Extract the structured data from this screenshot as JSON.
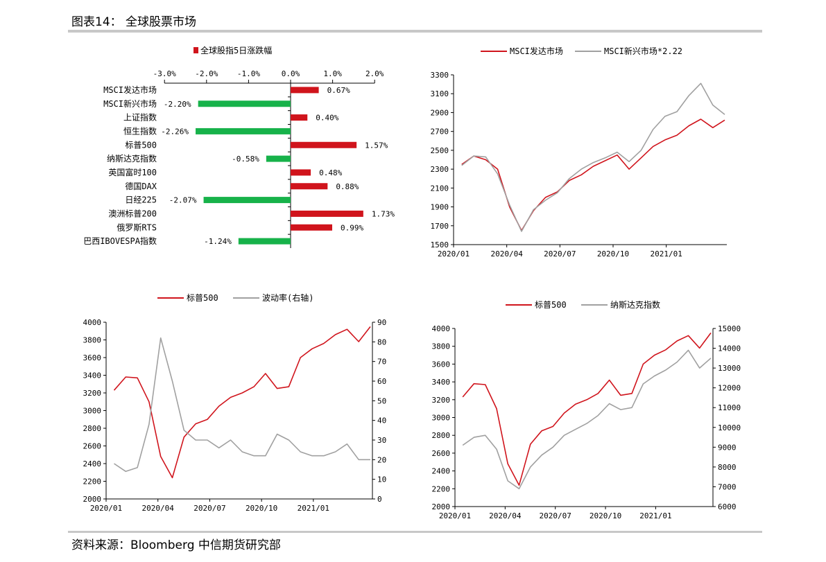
{
  "header": {
    "title": "图表14：  全球股票市场"
  },
  "footer": {
    "source": "资料来源：Bloomberg 中信期货研究部"
  },
  "colors": {
    "red": "#d0141c",
    "green": "#17b24a",
    "gray": "#a0a0a0",
    "rule": "#c8c8c8"
  },
  "chart_data": [
    {
      "id": "bar5d",
      "type": "bar",
      "orientation": "horizontal",
      "legend": "全球股指5日涨跌幅",
      "axis_ticks": [
        "-3.0%",
        "-2.0%",
        "-1.0%",
        "0.0%",
        "1.0%",
        "2.0%"
      ],
      "xlim": [
        -3.0,
        2.0
      ],
      "categories": [
        "MSCI发达市场",
        "MSCI新兴市场",
        "上证指数",
        "恒生指数",
        "标普500",
        "纳斯达克指数",
        "英国富时100",
        "德国DAX",
        "日经225",
        "澳洲标普200",
        "俄罗斯RTS",
        "巴西IBOVESPA指数"
      ],
      "values": [
        0.67,
        -2.2,
        0.4,
        -2.26,
        1.57,
        -0.58,
        0.48,
        0.88,
        -2.07,
        1.73,
        0.99,
        -1.24
      ],
      "value_labels": [
        "0.67%",
        "-2.20%",
        "0.40%",
        "-2.26%",
        "1.57%",
        "-0.58%",
        "0.48%",
        "0.88%",
        "-2.07%",
        "1.73%",
        "0.99%",
        "-1.24%"
      ]
    },
    {
      "id": "msci",
      "type": "line",
      "series": [
        {
          "name": "MSCI发达市场",
          "color": "red",
          "values": [
            2350,
            2440,
            2400,
            2300,
            1900,
            1650,
            1860,
            2000,
            2060,
            2180,
            2240,
            2330,
            2390,
            2450,
            2300,
            2420,
            2540,
            2610,
            2660,
            2760,
            2830,
            2740,
            2820
          ]
        },
        {
          "name": "MSCI新兴市场*2.22",
          "color": "gray",
          "values": [
            2340,
            2440,
            2430,
            2250,
            1920,
            1640,
            1870,
            1970,
            2050,
            2200,
            2300,
            2370,
            2420,
            2480,
            2380,
            2500,
            2720,
            2860,
            2910,
            3080,
            3210,
            2980,
            2880
          ]
        }
      ],
      "x_tick_labels": [
        "2020/01",
        "2020/04",
        "2020/07",
        "2020/10",
        "2021/01"
      ],
      "y_tick_labels": [
        "1500",
        "1700",
        "1900",
        "2100",
        "2300",
        "2500",
        "2700",
        "2900",
        "3100",
        "3300"
      ],
      "ylim": [
        1500,
        3300
      ]
    },
    {
      "id": "vix",
      "type": "line",
      "series": [
        {
          "name": "标普500",
          "axis": "left",
          "color": "red",
          "values": [
            3230,
            3380,
            3370,
            3100,
            2480,
            2240,
            2700,
            2850,
            2900,
            3050,
            3150,
            3200,
            3270,
            3420,
            3250,
            3270,
            3600,
            3700,
            3760,
            3860,
            3920,
            3780,
            3950
          ]
        },
        {
          "name": "波动率(右轴)",
          "axis": "right",
          "color": "gray",
          "values": [
            18,
            14,
            16,
            38,
            82,
            60,
            35,
            30,
            30,
            26,
            30,
            24,
            22,
            22,
            33,
            30,
            24,
            22,
            22,
            24,
            28,
            20,
            20
          ]
        }
      ],
      "x_tick_labels": [
        "2020/01",
        "2020/04",
        "2020/07",
        "2020/10",
        "2021/01"
      ],
      "y_tick_labels": [
        "2000",
        "2200",
        "2400",
        "2600",
        "2800",
        "3000",
        "3200",
        "3400",
        "3600",
        "3800",
        "4000"
      ],
      "y2_tick_labels": [
        "0",
        "10",
        "20",
        "30",
        "40",
        "50",
        "60",
        "70",
        "80",
        "90"
      ],
      "ylim": [
        2000,
        4000
      ],
      "y2lim": [
        0,
        90
      ]
    },
    {
      "id": "spx-ndx",
      "type": "line",
      "series": [
        {
          "name": "标普500",
          "axis": "left",
          "color": "red",
          "values": [
            3230,
            3380,
            3370,
            3100,
            2480,
            2240,
            2700,
            2850,
            2900,
            3050,
            3150,
            3200,
            3270,
            3420,
            3250,
            3270,
            3600,
            3700,
            3760,
            3860,
            3920,
            3780,
            3950
          ]
        },
        {
          "name": "纳斯达克指数",
          "axis": "right",
          "color": "gray",
          "values": [
            9100,
            9500,
            9600,
            8900,
            7300,
            6900,
            8000,
            8600,
            9000,
            9600,
            9900,
            10200,
            10600,
            11200,
            10900,
            11000,
            12200,
            12600,
            12900,
            13300,
            13900,
            13000,
            13500
          ]
        }
      ],
      "x_tick_labels": [
        "2020/01",
        "2020/04",
        "2020/07",
        "2020/10",
        "2021/01"
      ],
      "y_tick_labels": [
        "2000",
        "2200",
        "2400",
        "2600",
        "2800",
        "3000",
        "3200",
        "3400",
        "3600",
        "3800",
        "4000"
      ],
      "y2_tick_labels": [
        "6000",
        "7000",
        "8000",
        "9000",
        "10000",
        "11000",
        "12000",
        "13000",
        "14000",
        "15000"
      ],
      "ylim": [
        2000,
        4000
      ],
      "y2lim": [
        6000,
        15000
      ]
    }
  ]
}
